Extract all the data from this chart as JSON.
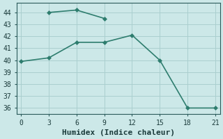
{
  "line1_x": [
    3,
    6,
    9
  ],
  "line1_y": [
    44.0,
    44.2,
    43.5
  ],
  "line2_x": [
    0,
    3,
    6,
    9,
    12,
    15,
    18,
    21
  ],
  "line2_y": [
    39.9,
    40.2,
    41.5,
    41.5,
    42.1,
    40.0,
    36.0,
    36.0
  ],
  "color": "#2e7d6e",
  "bg_color": "#cce8e8",
  "grid_color": "#aacfcf",
  "xlabel": "Humidex (Indice chaleur)",
  "xlim": [
    -0.5,
    21.5
  ],
  "ylim": [
    35.5,
    44.8
  ],
  "xticks": [
    0,
    3,
    6,
    9,
    12,
    15,
    18,
    21
  ],
  "yticks": [
    36,
    37,
    38,
    39,
    40,
    41,
    42,
    43,
    44
  ],
  "xlabel_fontsize": 8,
  "tick_fontsize": 7,
  "marker_size": 3,
  "linewidth": 1.2
}
